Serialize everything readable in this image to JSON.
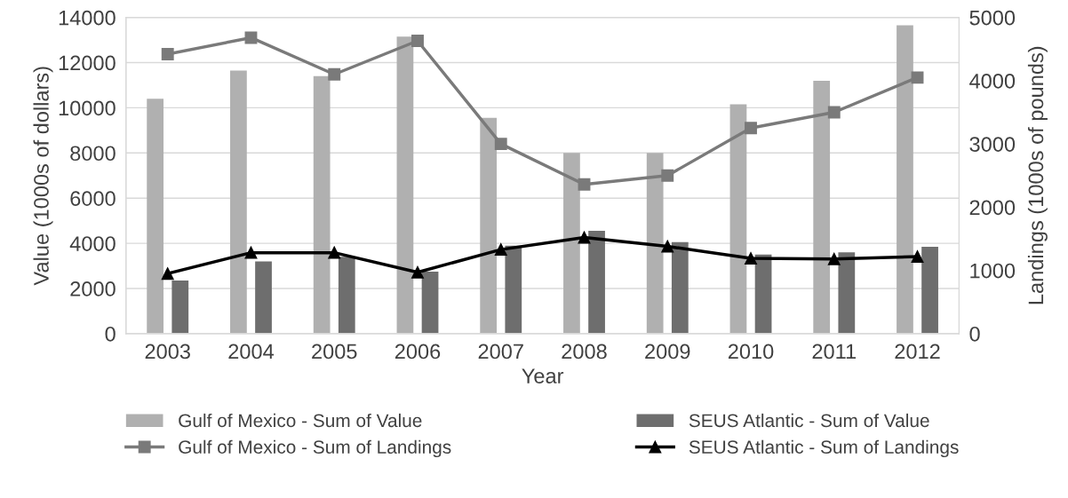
{
  "chart_data": {
    "type": "bar",
    "xlabel": "Year",
    "ylabel": "Value (1000s of dollars)",
    "y2label": "Landings (1000s of pounds)",
    "categories": [
      "2003",
      "2004",
      "2005",
      "2006",
      "2007",
      "2008",
      "2009",
      "2010",
      "2011",
      "2012"
    ],
    "series": [
      {
        "name": "Gulf of Mexico - Sum of Value",
        "color": "#b0b0b0",
        "values": [
          10400,
          11650,
          11400,
          13150,
          9550,
          8000,
          8000,
          10150,
          11200,
          13650
        ]
      },
      {
        "name": "SEUS Atlantic - Sum of Value",
        "color": "#6e6e6e",
        "values": [
          2350,
          3200,
          3400,
          2750,
          3900,
          4550,
          4050,
          3500,
          3600,
          3850
        ]
      },
      {
        "name": "Gulf of Mexico - Sum of Landings",
        "type": "line",
        "axis": "y2",
        "marker": "square",
        "color": "#7a7a7a",
        "values": [
          4420,
          4680,
          4100,
          4630,
          3000,
          2360,
          2500,
          3250,
          3500,
          4050
        ]
      },
      {
        "name": "SEUS Atlantic - Sum of Landings",
        "type": "line",
        "axis": "y2",
        "marker": "triangle",
        "color": "#000000",
        "values": [
          950,
          1280,
          1280,
          970,
          1330,
          1520,
          1380,
          1190,
          1180,
          1220
        ]
      }
    ],
    "ylim": [
      0,
      14000
    ],
    "yticks": [
      0,
      2000,
      4000,
      6000,
      8000,
      10000,
      12000,
      14000
    ],
    "y2lim": [
      0,
      5000
    ],
    "y2ticks": [
      0,
      1000,
      2000,
      3000,
      4000,
      5000
    ],
    "grid": "y",
    "legend": "bottom",
    "line_style": "solid"
  }
}
